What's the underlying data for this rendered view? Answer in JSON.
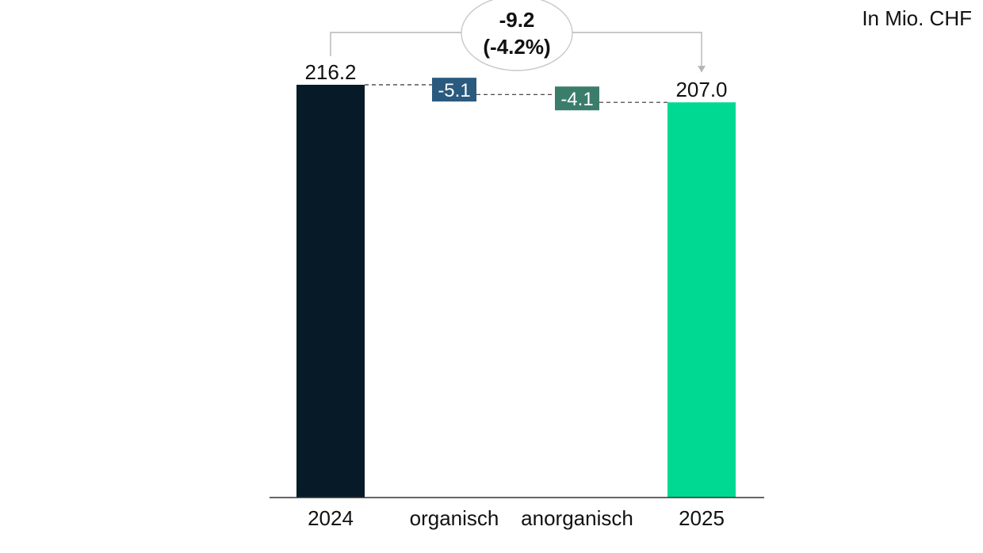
{
  "unit": "In Mio. CHF",
  "chart_data": {
    "type": "bar",
    "subtype": "waterfall",
    "categories": [
      "2024",
      "organisch",
      "anorganisch",
      "2025"
    ],
    "values": [
      216.2,
      -5.1,
      -4.1,
      207.0
    ],
    "labels": [
      "216.2",
      "-5.1",
      "-4.1",
      "207.0"
    ],
    "kinds": [
      "total",
      "delta",
      "delta",
      "total"
    ],
    "colors": [
      "#071a28",
      "#2b5a7f",
      "#3a7d6a",
      "#00d992"
    ],
    "ylim": [
      0,
      216.2
    ],
    "grid": false,
    "change": {
      "value": "-9.2",
      "percent": "(-4.2%)"
    }
  }
}
